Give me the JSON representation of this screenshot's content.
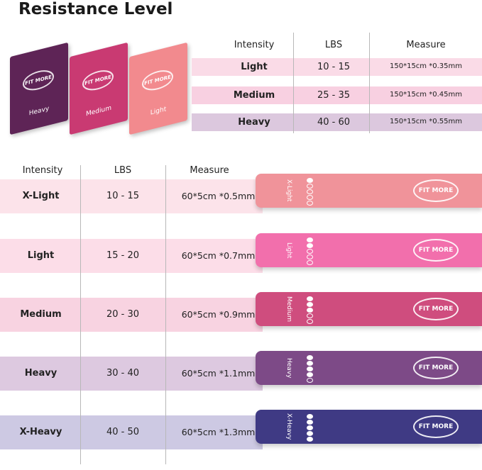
{
  "title": "Resistance Level",
  "top_table": {
    "headers": [
      "Intensity",
      "LBS",
      "Measure"
    ],
    "rows": [
      {
        "intensity": "Light",
        "lbs": "10 - 15",
        "measure": "150*15cm *0.35mm",
        "band_color": "#fadbe7"
      },
      {
        "intensity": "Medium",
        "lbs": "25 - 35",
        "measure": "150*15cm *0.45mm",
        "band_color": "#f8d0e1"
      },
      {
        "intensity": "Heavy",
        "lbs": "40 - 60",
        "measure": "150*15cm *0.55mm",
        "band_color": "#dcc8de"
      }
    ]
  },
  "sheets": [
    {
      "label": "Heavy",
      "color": "#5e2456",
      "logo": "FIT MORE"
    },
    {
      "label": "Medium",
      "color": "#c93a72",
      "logo": "FIT MORE"
    },
    {
      "label": "Light",
      "color": "#f28a8e",
      "logo": "FIT MORE"
    }
  ],
  "bottom_table": {
    "headers": [
      "Intensity",
      "LBS",
      "Measure"
    ],
    "rows": [
      {
        "intensity": "X-Light",
        "lbs": "10 - 15",
        "measure": "60*5cm *0.5mm",
        "band_color": "#fce3ea",
        "loop_color": "#f0939a",
        "level": 1,
        "loop_label": "X-Light",
        "logo": "FIT MORE"
      },
      {
        "intensity": "Light",
        "lbs": "15 - 20",
        "measure": "60*5cm *0.7mm",
        "band_color": "#fcdde8",
        "loop_color": "#f26fac",
        "level": 2,
        "loop_label": "Light",
        "logo": "FIT MORE"
      },
      {
        "intensity": "Medium",
        "lbs": "20 - 30",
        "measure": "60*5cm *0.9mm",
        "band_color": "#f8d3e1",
        "loop_color": "#cf4d7e",
        "level": 3,
        "loop_label": "Medium",
        "logo": "FIT MORE"
      },
      {
        "intensity": "Heavy",
        "lbs": "30 - 40",
        "measure": "60*5cm *1.1mm",
        "band_color": "#ddc9e0",
        "loop_color": "#7d4a87",
        "level": 4,
        "loop_label": "Heavy",
        "logo": "FIT MORE"
      },
      {
        "intensity": "X-Heavy",
        "lbs": "40 - 50",
        "measure": "60*5cm *1.3mm",
        "band_color": "#cdc9e3",
        "loop_color": "#3f3a84",
        "level": 5,
        "loop_label": "X-Heavy",
        "logo": "FIT MORE"
      }
    ]
  }
}
